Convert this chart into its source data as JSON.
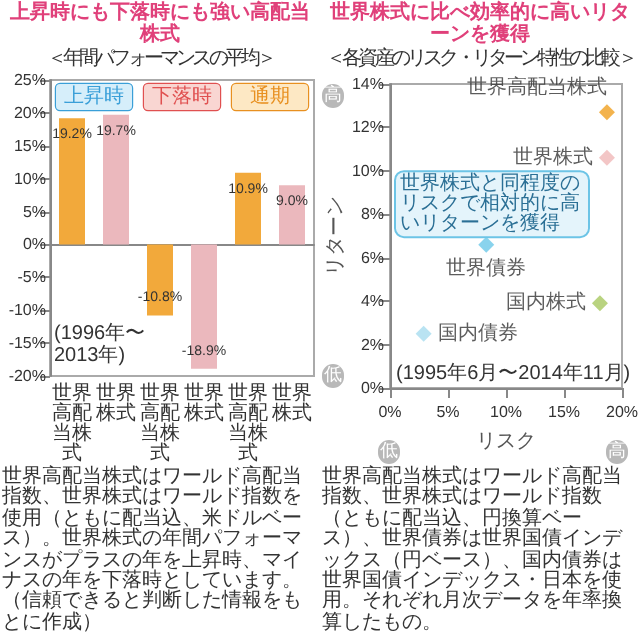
{
  "chart_data": [
    {
      "type": "bar",
      "title": "上昇時にも下落時にも強い高配当株式",
      "subtitle": "＜年間パフォーマンスの平均＞",
      "categories": [
        "世界高配当株式",
        "世界株式",
        "世界高配当株式",
        "世界株式",
        "世界高配当株式",
        "世界株式"
      ],
      "values": [
        19.2,
        19.7,
        -10.8,
        -18.9,
        10.9,
        9.0
      ],
      "colors": [
        "#f2a93b",
        "#ebb8bd",
        "#f2a93b",
        "#ebb8bd",
        "#f2a93b",
        "#ebb8bd"
      ],
      "value_labels": [
        "19.2%",
        "19.7%",
        "-10.8%",
        "-18.9%",
        "10.9%",
        "9.0%"
      ],
      "ylim": [
        -20,
        25
      ],
      "yticks": [
        {
          "value": -20,
          "label": "-20%"
        },
        {
          "value": -15,
          "label": "-15%"
        },
        {
          "value": -10,
          "label": "-10%"
        },
        {
          "value": -5,
          "label": "-5%"
        },
        {
          "value": 0,
          "label": "0%"
        },
        {
          "value": 5,
          "label": "5%"
        },
        {
          "value": 10,
          "label": "10%"
        },
        {
          "value": 15,
          "label": "15%"
        },
        {
          "value": 20,
          "label": "20%"
        },
        {
          "value": 25,
          "label": "25%"
        }
      ],
      "annotations": [
        "上昇時",
        "下落時",
        "通期",
        "(1996年〜2013年)",
        "世界高配当株式はワールド高配当指数、世界株式はワールド指数を使用（ともに配当込、米ドルベース）。世界株式の年間パフォーマンスがプラスの年を上昇時、マイナスの年を下落時としています。",
        "（信頼できると判断した情報をもとに作成）"
      ]
    },
    {
      "type": "scatter",
      "title": "世界株式に比べ効率的に高いリターンを獲得",
      "subtitle": "＜各資産のリスク・リターン特性の比較＞",
      "xlabel": "リスク",
      "ylabel": "リターン",
      "marker": "diamond",
      "series": [
        {
          "name": "世界高配当株式",
          "color": "#f0a020",
          "x": [
            18.7
          ],
          "values": [
            12.7
          ]
        },
        {
          "name": "世界株式",
          "color": "#f0b8b8",
          "x": [
            18.7
          ],
          "values": [
            10.6
          ]
        },
        {
          "name": "世界債券",
          "color": "#6cc8e8",
          "x": [
            8.3
          ],
          "values": [
            6.6
          ]
        },
        {
          "name": "国内株式",
          "color": "#a8c860",
          "x": [
            18.1
          ],
          "values": [
            3.9
          ]
        },
        {
          "name": "国内債券",
          "color": "#a8dcef",
          "x": [
            2.9
          ],
          "values": [
            2.5
          ]
        }
      ],
      "xlim": [
        0,
        20
      ],
      "xticks": [
        {
          "value": 0,
          "label": "0%"
        },
        {
          "value": 5,
          "label": "5%"
        },
        {
          "value": 10,
          "label": "10%"
        },
        {
          "value": 15,
          "label": "15%"
        },
        {
          "value": 20,
          "label": "20%"
        }
      ],
      "ylim": [
        0,
        14
      ],
      "yticks": [
        {
          "value": 0,
          "label": "0%"
        },
        {
          "value": 2,
          "label": "2%"
        },
        {
          "value": 4,
          "label": "4%"
        },
        {
          "value": 6,
          "label": "6%"
        },
        {
          "value": 8,
          "label": "8%"
        },
        {
          "value": 10,
          "label": "10%"
        },
        {
          "value": 12,
          "label": "12%"
        },
        {
          "value": 14,
          "label": "14%"
        }
      ],
      "annotations": [
        "世界株式と同程度のリスクで相対的に高いリターンを獲得",
        "(1995年6月〜2014年11月)",
        "高",
        "低",
        "低",
        "高",
        "世界高配当株式はワールド高配当指数、世界株式はワールド指数（ともに配当込、円換算ベース）、世界債券は世界国債インデックス（円ベース）、国内債券は世界国債インデックス・日本を使用。それぞれ月次データを年率換算したもの。"
      ]
    }
  ]
}
